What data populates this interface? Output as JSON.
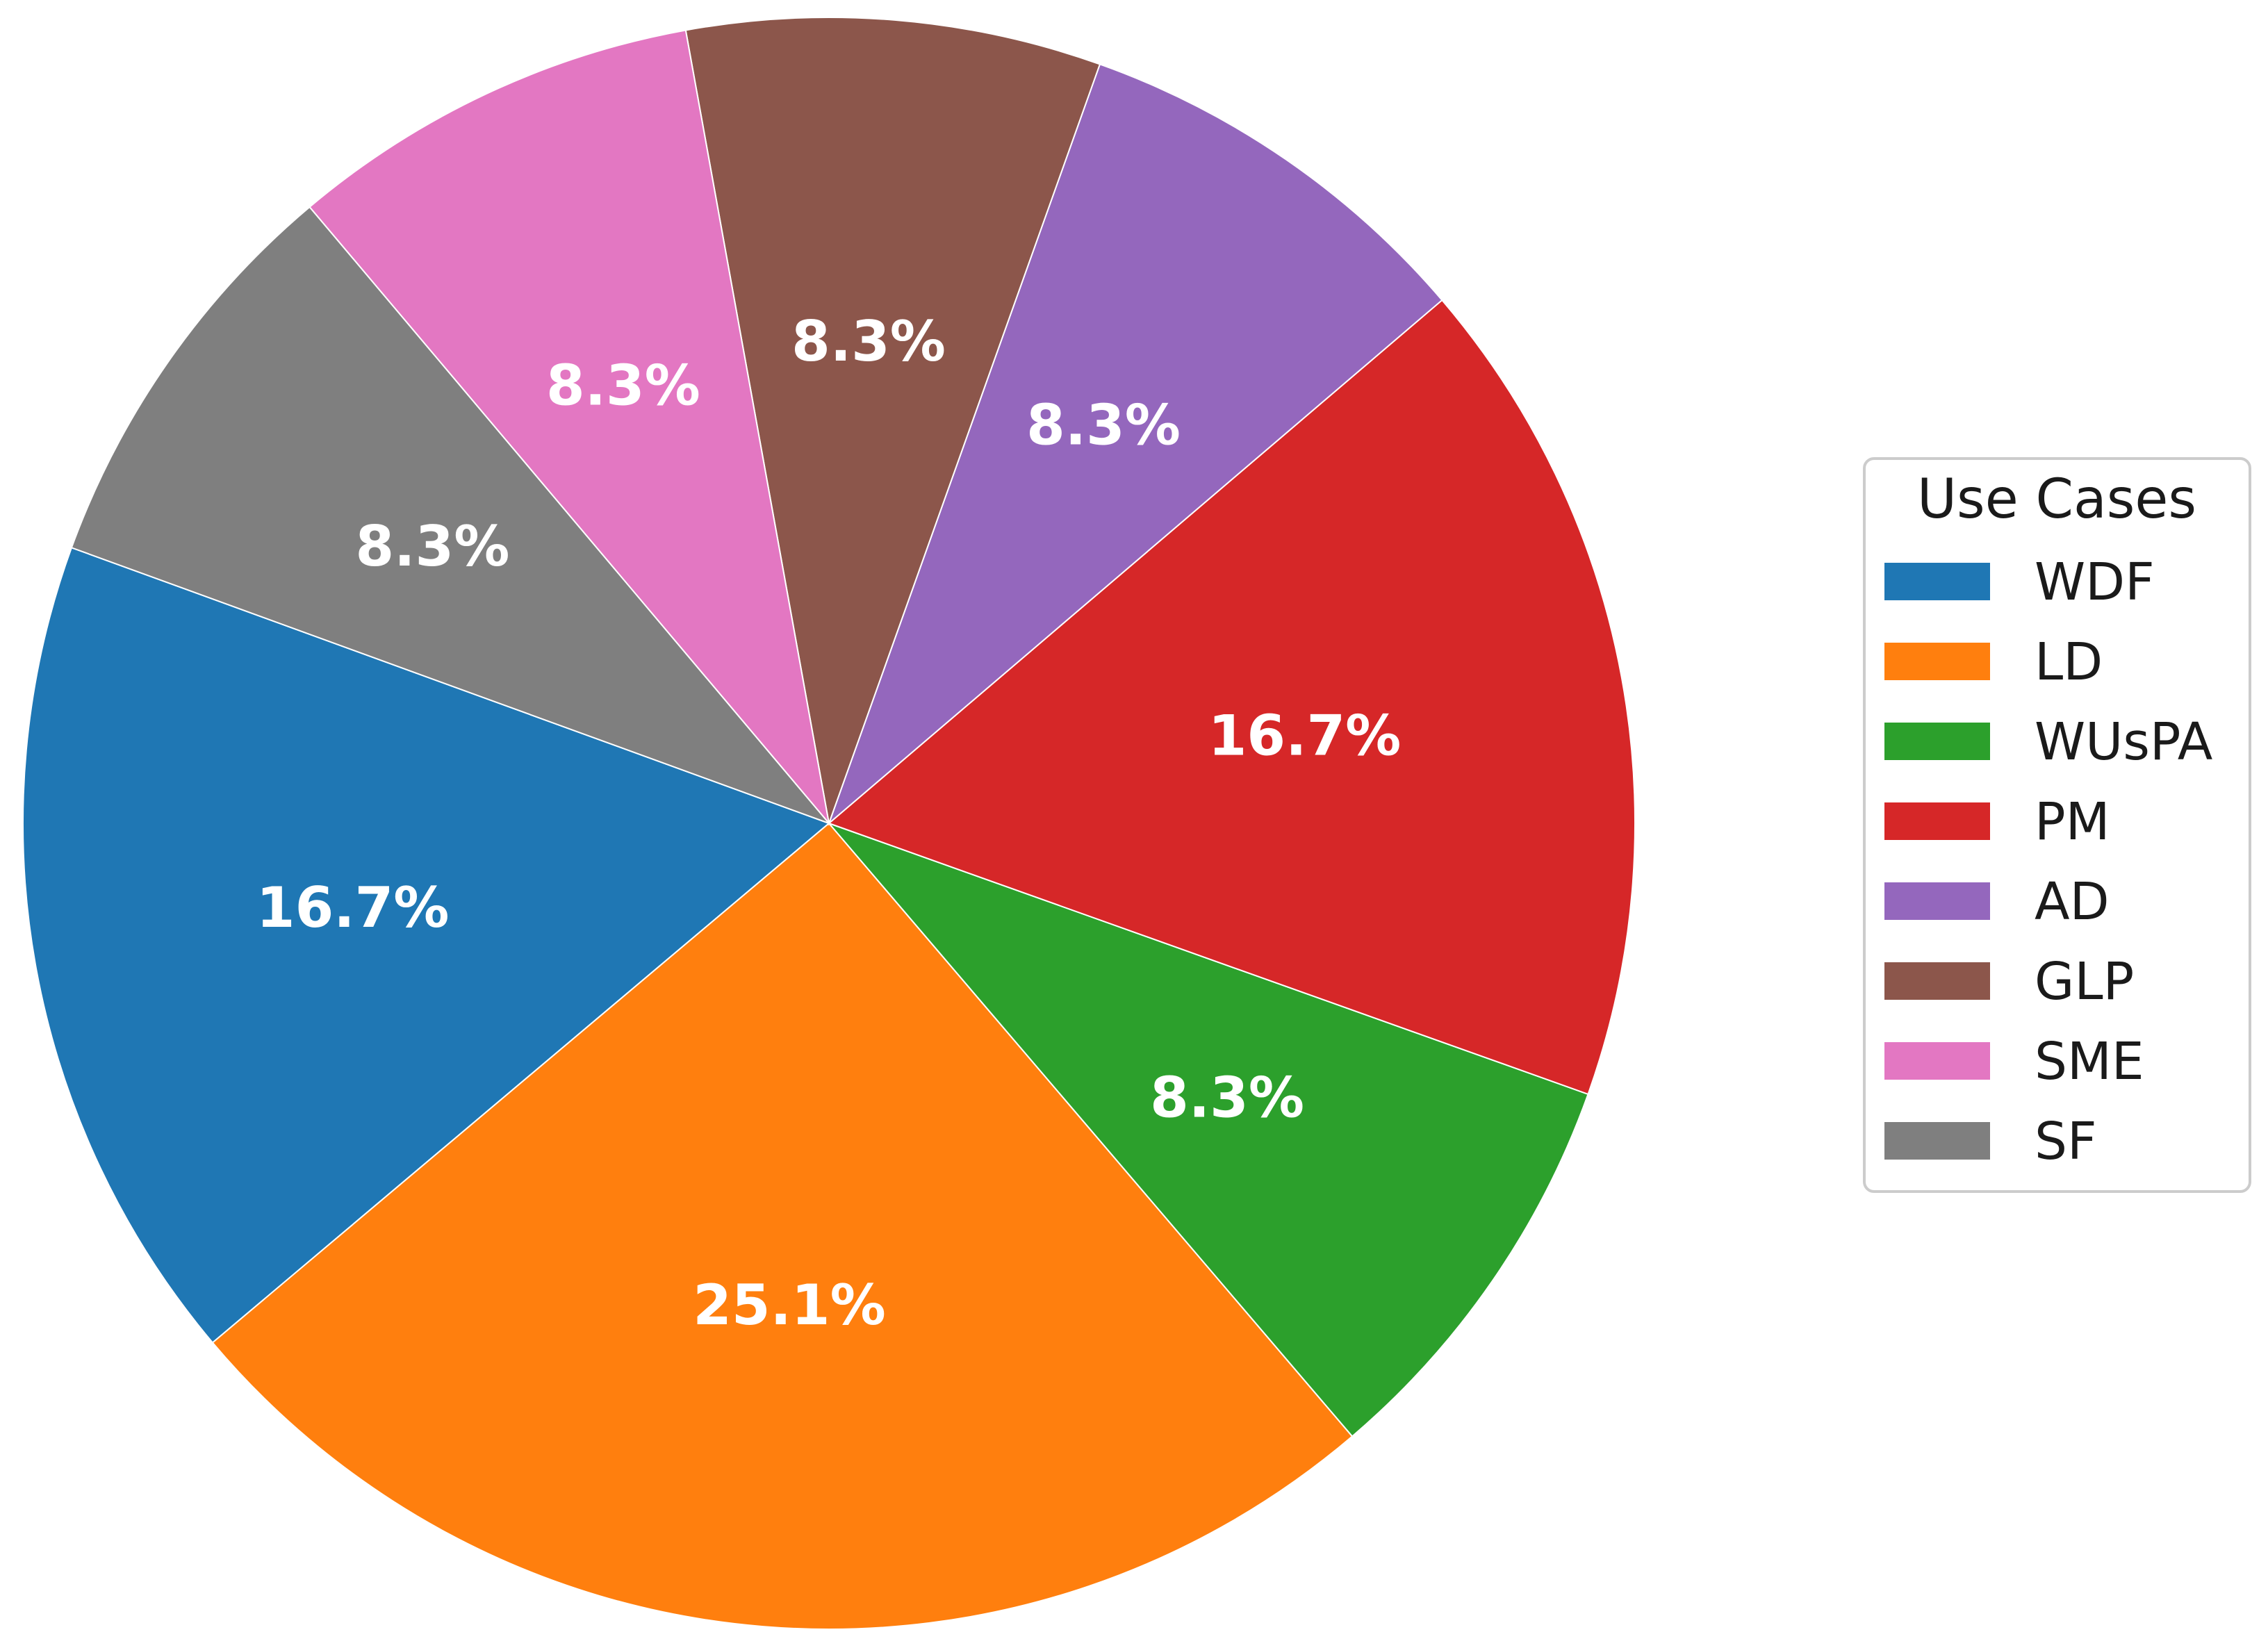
{
  "chart_data": {
    "type": "pie",
    "categories": [
      "WDF",
      "LD",
      "WUsPA",
      "PM",
      "AD",
      "GLP",
      "SME",
      "SF"
    ],
    "values": [
      16.7,
      25.1,
      8.3,
      16.7,
      8.3,
      8.3,
      8.3,
      8.3
    ],
    "labels": [
      "16.7%",
      "25.1%",
      "8.3%",
      "16.7%",
      "8.3%",
      "8.3%",
      "8.3%",
      "8.3%"
    ],
    "colors": [
      "#1f77b4",
      "#ff7f0e",
      "#2ca02c",
      "#d62728",
      "#9467bd",
      "#8c564b",
      "#e377c2",
      "#7f7f7f"
    ],
    "start_angle_deg": 160,
    "direction": "counterclockwise",
    "legend": {
      "title": "Use Cases",
      "placement": "right"
    }
  }
}
